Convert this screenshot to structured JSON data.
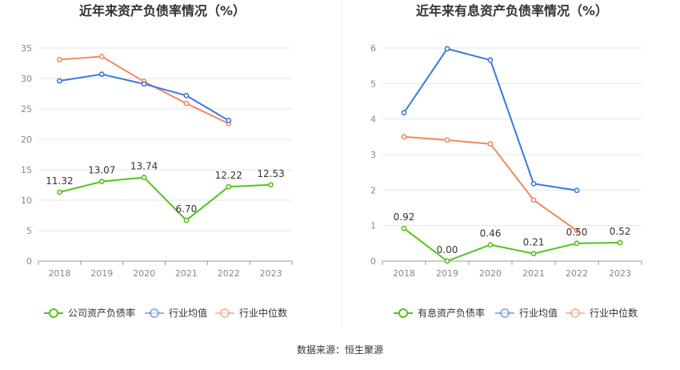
{
  "source": "数据来源：恒生聚源",
  "colors": {
    "company": "#52c41a",
    "industry_avg": "#3a78e0",
    "industry_median": "#f08a5d"
  },
  "chart_data": [
    {
      "type": "line",
      "title": "近年来资产负债率情况（%）",
      "categories": [
        "2018",
        "2019",
        "2020",
        "2021",
        "2022",
        "2023"
      ],
      "ylim": [
        0,
        35
      ],
      "yticks": [
        0,
        5,
        10,
        15,
        20,
        25,
        30,
        35
      ],
      "series": [
        {
          "name": "公司资产负债率",
          "key": "company",
          "values": [
            11.32,
            13.07,
            13.74,
            6.7,
            12.22,
            12.53
          ],
          "labels": [
            "11.32",
            "13.07",
            "13.74",
            "6.70",
            "12.22",
            "12.53"
          ]
        },
        {
          "name": "行业均值",
          "key": "industry_avg",
          "values": [
            29.6,
            30.7,
            29.1,
            27.2,
            23.1,
            null
          ]
        },
        {
          "name": "行业中位数",
          "key": "industry_median",
          "values": [
            33.1,
            33.6,
            29.5,
            25.9,
            22.6,
            null
          ]
        }
      ]
    },
    {
      "type": "line",
      "title": "近年来有息资产负债率情况（%）",
      "categories": [
        "2018",
        "2019",
        "2020",
        "2021",
        "2022",
        "2023"
      ],
      "ylim": [
        0,
        6
      ],
      "yticks": [
        0,
        1,
        2,
        3,
        4,
        5,
        6
      ],
      "series": [
        {
          "name": "有息资产负债率",
          "key": "company",
          "values": [
            0.92,
            0.0,
            0.46,
            0.21,
            0.5,
            0.52
          ],
          "labels": [
            "0.92",
            "0.00",
            "0.46",
            "0.21",
            "0.50",
            "0.52"
          ]
        },
        {
          "name": "行业均值",
          "key": "industry_avg",
          "values": [
            4.18,
            5.98,
            5.66,
            2.18,
            1.99,
            null
          ]
        },
        {
          "name": "行业中位数",
          "key": "industry_median",
          "values": [
            3.5,
            3.41,
            3.3,
            1.72,
            0.86,
            null
          ]
        }
      ]
    }
  ]
}
